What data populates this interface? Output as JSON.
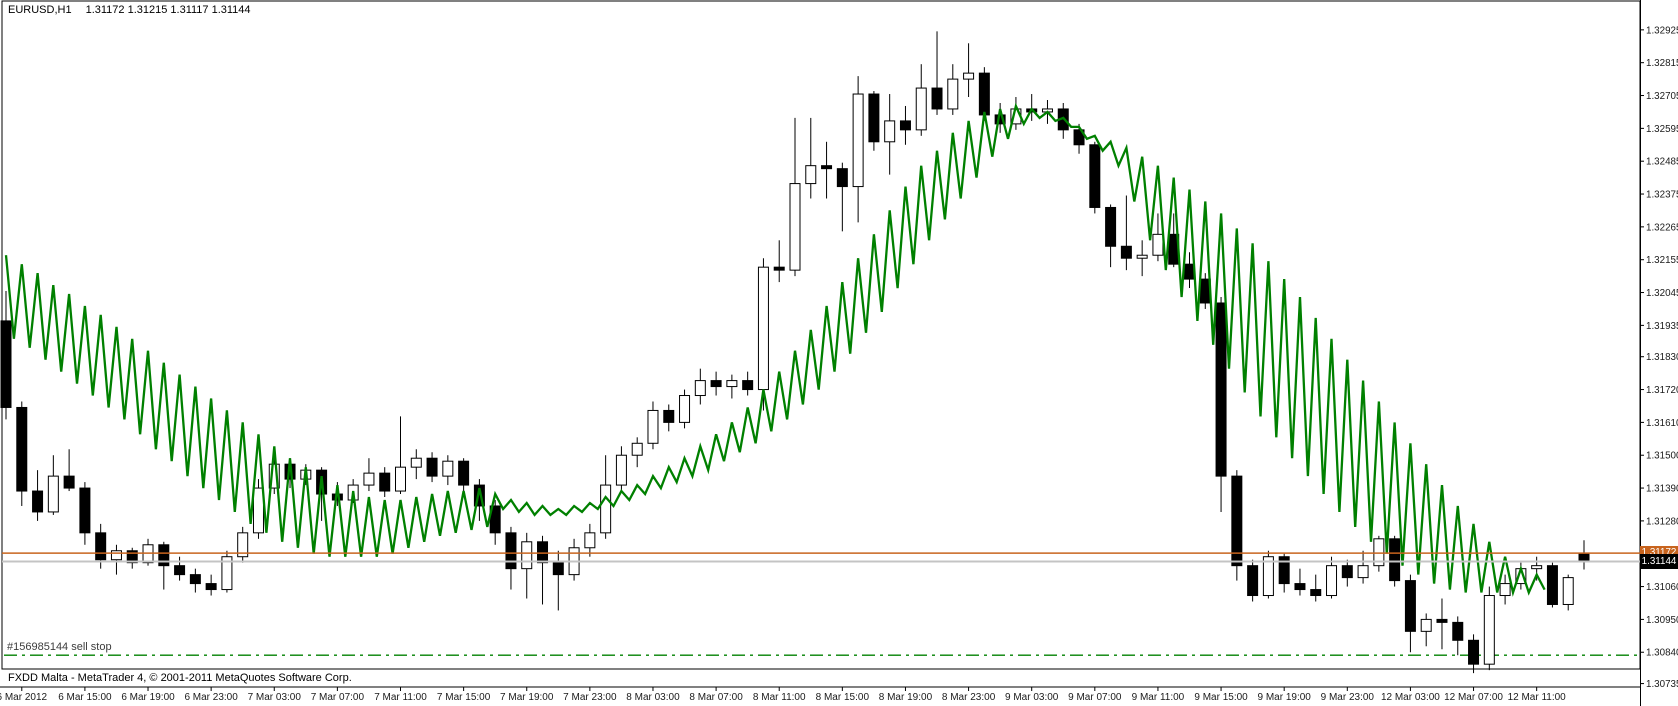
{
  "window": {
    "symbol_period": "EURUSD,H1",
    "quote_line": "1.31172 1.31215 1.31117 1.31144"
  },
  "footer": {
    "copyright": "FXDD Malta - MetaTrader 4, © 2001-2011 MetaQuotes Software Corp."
  },
  "order": {
    "label": "#156985144 sell stop",
    "price": 1.3083,
    "line_color": "#008000"
  },
  "price_axis": {
    "labels": [
      "1.32925",
      "1.32815",
      "1.32705",
      "1.32595",
      "1.32485",
      "1.32375",
      "1.32265",
      "1.32155",
      "1.32045",
      "1.31935",
      "1.31830",
      "1.31720",
      "1.31610",
      "1.31500",
      "1.31390",
      "1.31280",
      "1.31060",
      "1.30950",
      "1.30840",
      "1.30735"
    ],
    "ask_box_value": "1.31172",
    "bid_box_value": "1.31144",
    "ask_box_color": "#C8641E",
    "bid_box_color": "#000000"
  },
  "time_axis": {
    "labels": [
      "6 Mar 2012",
      "6 Mar 15:00",
      "6 Mar 19:00",
      "6 Mar 23:00",
      "7 Mar 03:00",
      "7 Mar 07:00",
      "7 Mar 11:00",
      "7 Mar 15:00",
      "7 Mar 19:00",
      "7 Mar 23:00",
      "8 Mar 03:00",
      "8 Mar 07:00",
      "8 Mar 11:00",
      "8 Mar 15:00",
      "8 Mar 19:00",
      "8 Mar 23:00",
      "9 Mar 03:00",
      "9 Mar 07:00",
      "9 Mar 11:00",
      "9 Mar 15:00",
      "9 Mar 19:00",
      "9 Mar 23:00",
      "12 Mar 03:00",
      "12 Mar 07:00",
      "12 Mar 11:00"
    ]
  },
  "colors": {
    "bull": "#ffffff",
    "bear": "#000000",
    "outline": "#000000",
    "indicator": "#008000",
    "ask_line": "#C8641E",
    "bid_line": "#C4C4C4",
    "border": "#000000",
    "axis_text": "#1a1a1a"
  },
  "chart_data": {
    "type": "candlestick",
    "symbol": "EURUSD",
    "timeframe": "H1",
    "title": "EURUSD,H1  1.31172 1.31215 1.31117 1.31144",
    "current_bar": {
      "open": 1.31172,
      "high": 1.31215,
      "low": 1.31117,
      "close": 1.31144
    },
    "bid": 1.31144,
    "ask": 1.31172,
    "pending_order": {
      "id": "#156985144",
      "type": "sell stop",
      "price": 1.3083
    },
    "y_axis_ticks": [
      1.32925,
      1.32815,
      1.32705,
      1.32595,
      1.32485,
      1.32375,
      1.32265,
      1.32155,
      1.32045,
      1.31935,
      1.3183,
      1.3172,
      1.3161,
      1.315,
      1.3139,
      1.3128,
      1.3106,
      1.3095,
      1.3084,
      1.30735
    ],
    "y_range_visible": [
      1.3074,
      1.3303
    ],
    "grid": false,
    "candles_ohlc": [
      [
        1.3195,
        1.3205,
        1.3162,
        1.3166
      ],
      [
        1.3166,
        1.3168,
        1.3133,
        1.3138
      ],
      [
        1.3138,
        1.3145,
        1.3128,
        1.3131
      ],
      [
        1.3131,
        1.315,
        1.313,
        1.3143
      ],
      [
        1.3143,
        1.3152,
        1.3138,
        1.3139
      ],
      [
        1.3139,
        1.3141,
        1.312,
        1.3124
      ],
      [
        1.3124,
        1.3127,
        1.3112,
        1.3115
      ],
      [
        1.3115,
        1.312,
        1.311,
        1.3118
      ],
      [
        1.3118,
        1.3119,
        1.3112,
        1.3114
      ],
      [
        1.3114,
        1.3122,
        1.3113,
        1.312
      ],
      [
        1.312,
        1.3121,
        1.3105,
        1.3113
      ],
      [
        1.3113,
        1.3116,
        1.3108,
        1.311
      ],
      [
        1.311,
        1.3112,
        1.3104,
        1.3107
      ],
      [
        1.3107,
        1.311,
        1.3103,
        1.3105
      ],
      [
        1.3105,
        1.3118,
        1.3104,
        1.3116
      ],
      [
        1.3116,
        1.3126,
        1.3114,
        1.3124
      ],
      [
        1.3124,
        1.3142,
        1.3122,
        1.3139
      ],
      [
        1.3139,
        1.3151,
        1.3137,
        1.3147
      ],
      [
        1.3147,
        1.3149,
        1.3139,
        1.3142
      ],
      [
        1.3142,
        1.3147,
        1.314,
        1.3145
      ],
      [
        1.3145,
        1.3146,
        1.3128,
        1.3137
      ],
      [
        1.3137,
        1.3141,
        1.3133,
        1.3135
      ],
      [
        1.3135,
        1.3142,
        1.3134,
        1.314
      ],
      [
        1.314,
        1.3149,
        1.3138,
        1.3144
      ],
      [
        1.3144,
        1.3146,
        1.3136,
        1.3138
      ],
      [
        1.3138,
        1.3163,
        1.3137,
        1.3146
      ],
      [
        1.3146,
        1.3152,
        1.3142,
        1.3149
      ],
      [
        1.3149,
        1.3151,
        1.3141,
        1.3143
      ],
      [
        1.3143,
        1.315,
        1.314,
        1.3148
      ],
      [
        1.3148,
        1.3149,
        1.3138,
        1.314
      ],
      [
        1.314,
        1.3142,
        1.3128,
        1.3133
      ],
      [
        1.3133,
        1.3135,
        1.312,
        1.3124
      ],
      [
        1.3124,
        1.3126,
        1.3105,
        1.3112
      ],
      [
        1.3112,
        1.3124,
        1.3102,
        1.3121
      ],
      [
        1.3121,
        1.3123,
        1.31,
        1.3114
      ],
      [
        1.3114,
        1.3118,
        1.3098,
        1.311
      ],
      [
        1.311,
        1.3122,
        1.3108,
        1.3119
      ],
      [
        1.3119,
        1.3127,
        1.3116,
        1.3124
      ],
      [
        1.3124,
        1.315,
        1.3122,
        1.314
      ],
      [
        1.314,
        1.3153,
        1.3138,
        1.315
      ],
      [
        1.315,
        1.3156,
        1.3146,
        1.3154
      ],
      [
        1.3154,
        1.3168,
        1.3152,
        1.3165
      ],
      [
        1.3165,
        1.3167,
        1.3158,
        1.3161
      ],
      [
        1.3161,
        1.3172,
        1.3159,
        1.317
      ],
      [
        1.317,
        1.3179,
        1.3167,
        1.3175
      ],
      [
        1.3175,
        1.3178,
        1.317,
        1.3173
      ],
      [
        1.3173,
        1.3177,
        1.3169,
        1.3175
      ],
      [
        1.3175,
        1.3178,
        1.317,
        1.3172
      ],
      [
        1.3172,
        1.3216,
        1.3165,
        1.3213
      ],
      [
        1.3213,
        1.3222,
        1.3208,
        1.3212
      ],
      [
        1.3212,
        1.3263,
        1.321,
        1.3241
      ],
      [
        1.3241,
        1.3263,
        1.3236,
        1.3247
      ],
      [
        1.3247,
        1.3255,
        1.3236,
        1.3246
      ],
      [
        1.3246,
        1.3248,
        1.3225,
        1.324
      ],
      [
        1.324,
        1.3277,
        1.3228,
        1.3271
      ],
      [
        1.3271,
        1.3272,
        1.3252,
        1.3255
      ],
      [
        1.3255,
        1.3271,
        1.3244,
        1.3262
      ],
      [
        1.3262,
        1.3267,
        1.3254,
        1.3259
      ],
      [
        1.3259,
        1.3281,
        1.3257,
        1.3273
      ],
      [
        1.3273,
        1.3292,
        1.3264,
        1.3266
      ],
      [
        1.3266,
        1.3281,
        1.3264,
        1.3276
      ],
      [
        1.3276,
        1.3288,
        1.327,
        1.3278
      ],
      [
        1.3278,
        1.328,
        1.3262,
        1.3264
      ],
      [
        1.3264,
        1.3268,
        1.3258,
        1.3261
      ],
      [
        1.3261,
        1.327,
        1.3259,
        1.3266
      ],
      [
        1.3266,
        1.3271,
        1.3262,
        1.3265
      ],
      [
        1.3265,
        1.3269,
        1.3261,
        1.3266
      ],
      [
        1.3266,
        1.3268,
        1.3256,
        1.3259
      ],
      [
        1.3259,
        1.3261,
        1.3251,
        1.3254
      ],
      [
        1.3254,
        1.3255,
        1.3231,
        1.3233
      ],
      [
        1.3233,
        1.3234,
        1.3213,
        1.322
      ],
      [
        1.322,
        1.3237,
        1.3212,
        1.3216
      ],
      [
        1.3216,
        1.3222,
        1.321,
        1.3217
      ],
      [
        1.3217,
        1.3231,
        1.3215,
        1.3224
      ],
      [
        1.3224,
        1.3231,
        1.3213,
        1.3214
      ],
      [
        1.3214,
        1.3218,
        1.3206,
        1.3209
      ],
      [
        1.3209,
        1.3211,
        1.3199,
        1.3201
      ],
      [
        1.3201,
        1.3203,
        1.3131,
        1.3143
      ],
      [
        1.3143,
        1.3145,
        1.3108,
        1.3113
      ],
      [
        1.3113,
        1.3115,
        1.3101,
        1.3103
      ],
      [
        1.3103,
        1.3118,
        1.3102,
        1.3116
      ],
      [
        1.3116,
        1.3117,
        1.3104,
        1.3107
      ],
      [
        1.3107,
        1.3112,
        1.3103,
        1.3105
      ],
      [
        1.3105,
        1.311,
        1.3101,
        1.3103
      ],
      [
        1.3103,
        1.3116,
        1.3102,
        1.3113
      ],
      [
        1.3113,
        1.3115,
        1.3106,
        1.3109
      ],
      [
        1.3109,
        1.3118,
        1.3107,
        1.3113
      ],
      [
        1.3113,
        1.3123,
        1.3111,
        1.3122
      ],
      [
        1.3122,
        1.3123,
        1.3106,
        1.3108
      ],
      [
        1.3108,
        1.311,
        1.3084,
        1.3091
      ],
      [
        1.3091,
        1.3097,
        1.3086,
        1.3095
      ],
      [
        1.3095,
        1.3102,
        1.3085,
        1.3094
      ],
      [
        1.3094,
        1.3096,
        1.3083,
        1.3088
      ],
      [
        1.3088,
        1.309,
        1.3077,
        1.308
      ],
      [
        1.308,
        1.3106,
        1.3078,
        1.3103
      ],
      [
        1.3103,
        1.311,
        1.31,
        1.3107
      ],
      [
        1.3107,
        1.3114,
        1.3105,
        1.3112
      ],
      [
        1.3112,
        1.3116,
        1.3108,
        1.3113
      ],
      [
        1.3113,
        1.3114,
        1.3099,
        1.31
      ],
      [
        1.31,
        1.311,
        1.3098,
        1.3109
      ],
      [
        1.31172,
        1.31215,
        1.31117,
        1.31144
      ]
    ],
    "indicator": {
      "name": "green sawtooth MA",
      "color": "#008000",
      "teeth_top_bottom": [
        [
          1.3217,
          1.3189
        ],
        [
          1.3214,
          1.3186
        ],
        [
          1.3211,
          1.3182
        ],
        [
          1.3207,
          1.3178
        ],
        [
          1.3204,
          1.3174
        ],
        [
          1.32,
          1.317
        ],
        [
          1.3197,
          1.3166
        ],
        [
          1.3193,
          1.3162
        ],
        [
          1.3189,
          1.3157
        ],
        [
          1.3185,
          1.3152
        ],
        [
          1.3181,
          1.3148
        ],
        [
          1.3177,
          1.3143
        ],
        [
          1.3173,
          1.3139
        ],
        [
          1.3169,
          1.3135
        ],
        [
          1.3165,
          1.3131
        ],
        [
          1.3161,
          1.3127
        ],
        [
          1.3157,
          1.3124
        ],
        [
          1.3153,
          1.3121
        ],
        [
          1.3149,
          1.3119
        ],
        [
          1.3146,
          1.3117
        ],
        [
          1.3143,
          1.3116
        ],
        [
          1.314,
          1.3116
        ],
        [
          1.3138,
          1.3116
        ],
        [
          1.3136,
          1.3116
        ],
        [
          1.3135,
          1.3117
        ],
        [
          1.3135,
          1.3119
        ],
        [
          1.3136,
          1.3121
        ],
        [
          1.3137,
          1.3123
        ],
        [
          1.3138,
          1.3124
        ],
        [
          1.3138,
          1.3125
        ],
        [
          1.3139,
          1.3126
        ],
        [
          1.3137,
          1.3132
        ],
        [
          1.3135,
          1.3131
        ],
        [
          1.3134,
          1.313
        ],
        [
          1.3133,
          1.313
        ],
        [
          1.3132,
          1.313
        ],
        [
          1.3133,
          1.3131
        ],
        [
          1.3134,
          1.3132
        ],
        [
          1.3136,
          1.3133
        ],
        [
          1.3138,
          1.3135
        ],
        [
          1.314,
          1.3137
        ],
        [
          1.3143,
          1.3139
        ],
        [
          1.3146,
          1.3141
        ],
        [
          1.3149,
          1.3143
        ],
        [
          1.3153,
          1.3145
        ],
        [
          1.3157,
          1.3148
        ],
        [
          1.3161,
          1.3151
        ],
        [
          1.3166,
          1.3154
        ],
        [
          1.3172,
          1.3158
        ],
        [
          1.3178,
          1.3162
        ],
        [
          1.3185,
          1.3167
        ],
        [
          1.3192,
          1.3172
        ],
        [
          1.32,
          1.3178
        ],
        [
          1.3208,
          1.3184
        ],
        [
          1.3216,
          1.3191
        ],
        [
          1.3224,
          1.3198
        ],
        [
          1.3232,
          1.3206
        ],
        [
          1.324,
          1.3214
        ],
        [
          1.3247,
          1.3222
        ],
        [
          1.3252,
          1.3229
        ],
        [
          1.3258,
          1.3236
        ],
        [
          1.3262,
          1.3243
        ],
        [
          1.3265,
          1.325
        ],
        [
          1.3266,
          1.3256
        ],
        [
          1.3267,
          1.3261
        ],
        [
          1.3266,
          1.3263
        ],
        [
          1.3265,
          1.3262
        ],
        [
          1.3263,
          1.326
        ],
        [
          1.326,
          1.3256
        ],
        [
          1.3257,
          1.3252
        ],
        [
          1.3255,
          1.3247
        ],
        [
          1.3253,
          1.3235
        ],
        [
          1.325,
          1.3222
        ],
        [
          1.3247,
          1.3212
        ],
        [
          1.3243,
          1.3203
        ],
        [
          1.3239,
          1.3195
        ],
        [
          1.3235,
          1.3187
        ],
        [
          1.3231,
          1.3179
        ],
        [
          1.3226,
          1.3171
        ],
        [
          1.3221,
          1.3163
        ],
        [
          1.3215,
          1.3156
        ],
        [
          1.3209,
          1.3149
        ],
        [
          1.3203,
          1.3143
        ],
        [
          1.3196,
          1.3137
        ],
        [
          1.3189,
          1.3131
        ],
        [
          1.3182,
          1.3126
        ],
        [
          1.3175,
          1.3121
        ],
        [
          1.3168,
          1.3117
        ],
        [
          1.3161,
          1.3113
        ],
        [
          1.3154,
          1.311
        ],
        [
          1.3147,
          1.3107
        ],
        [
          1.314,
          1.3105
        ],
        [
          1.3133,
          1.3104
        ],
        [
          1.3127,
          1.3104
        ],
        [
          1.3121,
          1.3104
        ],
        [
          1.3116,
          1.3104
        ],
        [
          1.3112,
          1.3104
        ],
        [
          1.311,
          1.3105
        ]
      ]
    }
  }
}
